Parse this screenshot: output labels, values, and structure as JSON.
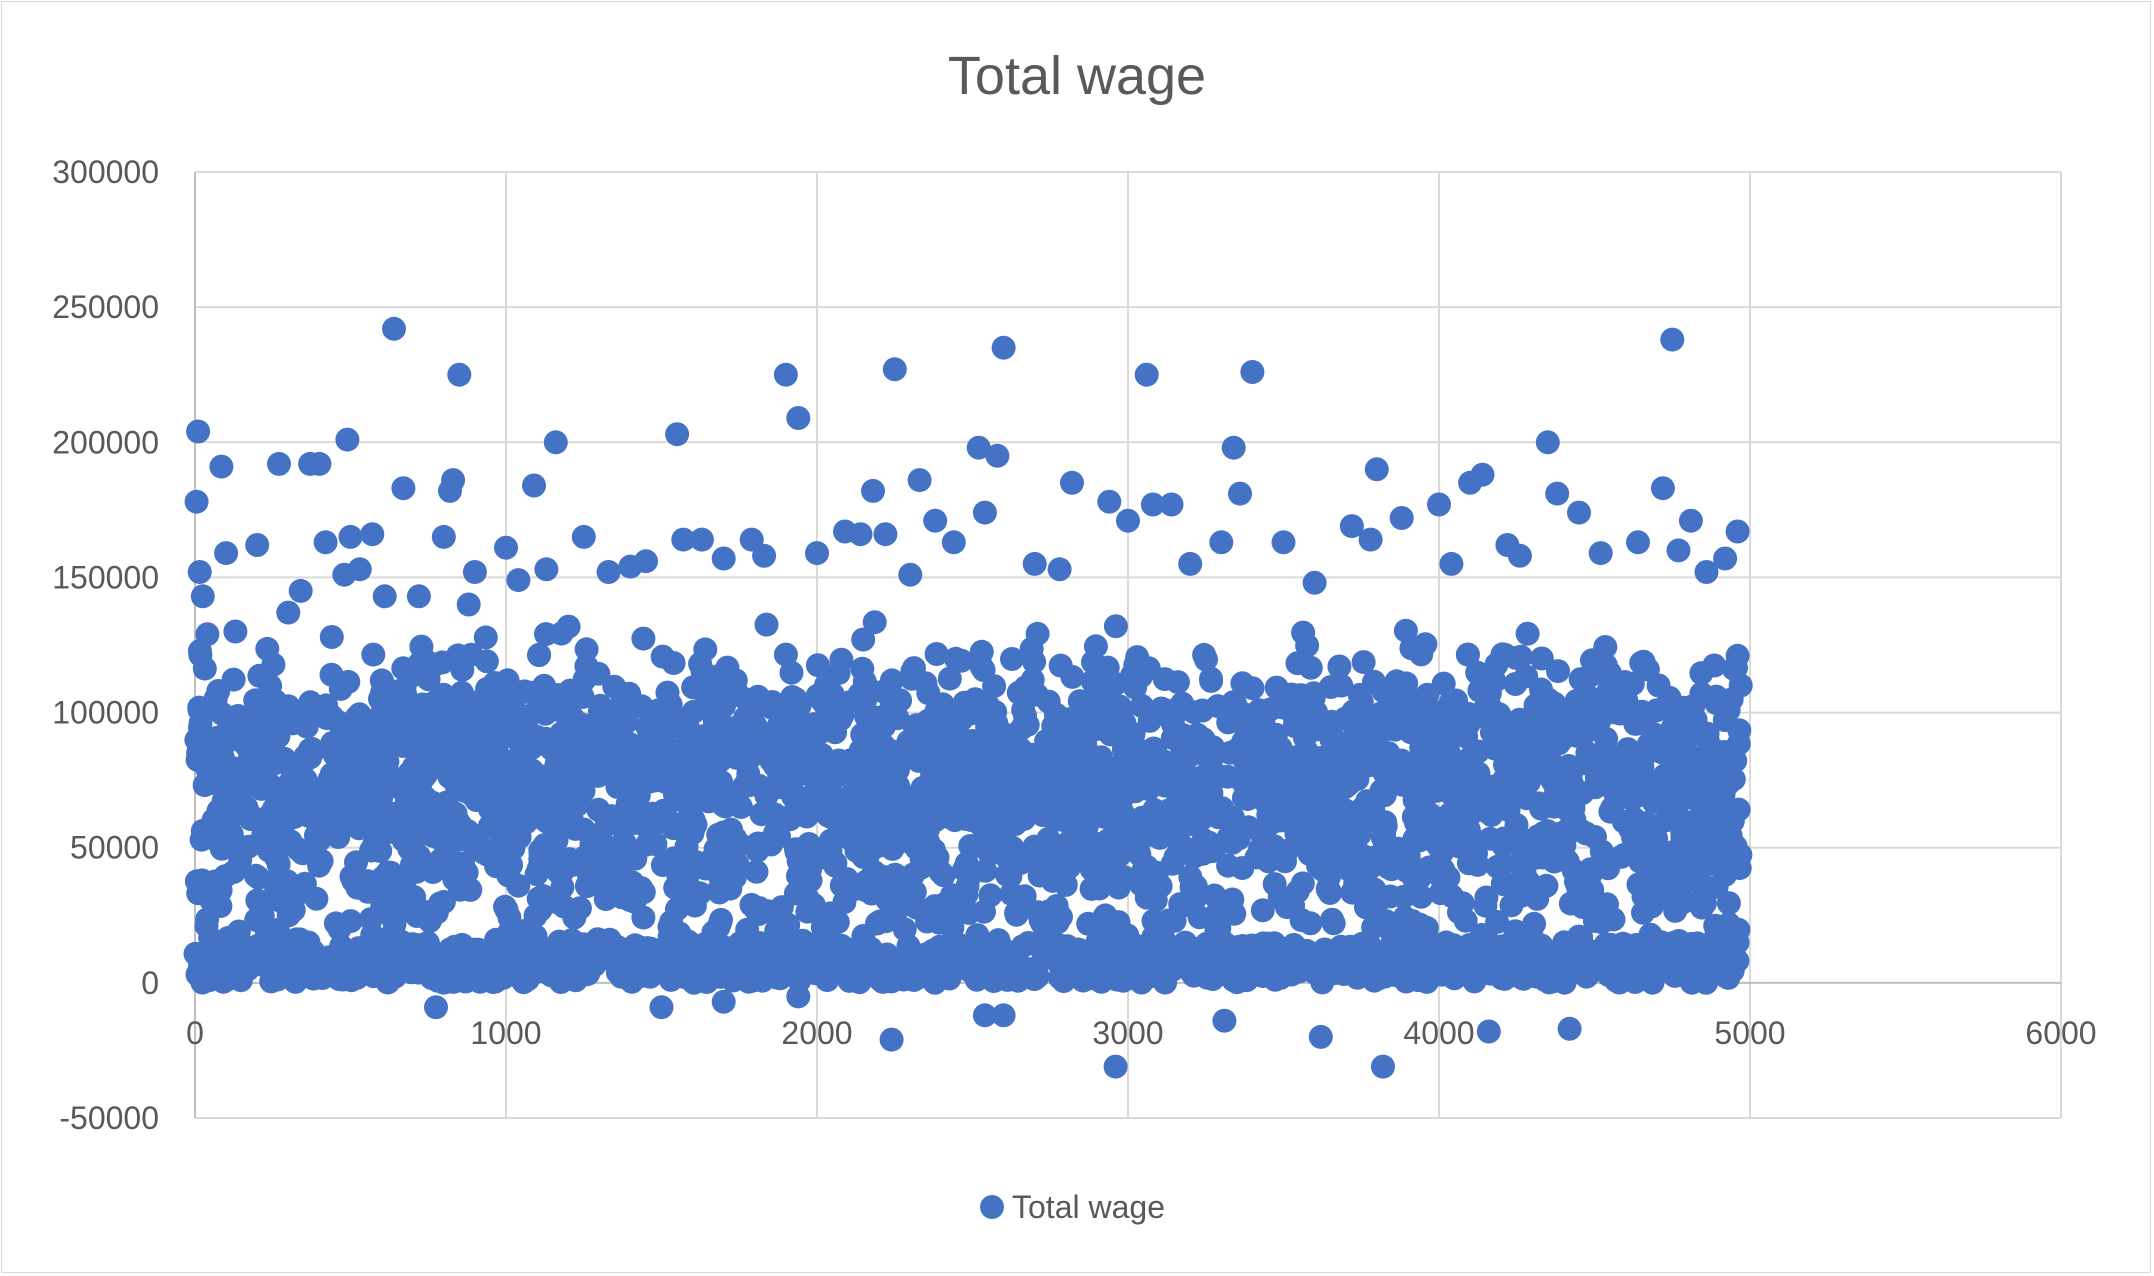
{
  "chart_data": {
    "type": "scatter",
    "title": "Total wage",
    "xlabel": "",
    "ylabel": "",
    "xlim": [
      0,
      6000
    ],
    "ylim": [
      -50000,
      300000
    ],
    "x_ticks": [
      "0",
      "1000",
      "2000",
      "3000",
      "4000",
      "5000",
      "6000"
    ],
    "y_ticks": [
      "300000",
      "250000",
      "200000",
      "150000",
      "100000",
      "50000",
      "0",
      "-50000"
    ],
    "grid": true,
    "legend_position": "bottom",
    "series": [
      {
        "name": "Total wage",
        "color": "#4472C4",
        "point_count_approx": 4970,
        "x_range": [
          1,
          4970
        ],
        "notes_distribution": "dense band mostly between 0 and 130000 across all x",
        "points": [
          [
            10,
            204000
          ],
          [
            5,
            178000
          ],
          [
            15,
            152000
          ],
          [
            25,
            143000
          ],
          [
            40,
            129000
          ],
          [
            85,
            191000
          ],
          [
            100,
            159000
          ],
          [
            130,
            130000
          ],
          [
            200,
            162000
          ],
          [
            270,
            192000
          ],
          [
            300,
            137000
          ],
          [
            340,
            145000
          ],
          [
            370,
            192000
          ],
          [
            400,
            192000
          ],
          [
            420,
            163000
          ],
          [
            480,
            151000
          ],
          [
            490,
            201000
          ],
          [
            500,
            165000
          ],
          [
            530,
            153000
          ],
          [
            570,
            166000
          ],
          [
            610,
            143000
          ],
          [
            640,
            242000
          ],
          [
            670,
            183000
          ],
          [
            720,
            143000
          ],
          [
            800,
            165000
          ],
          [
            820,
            182000
          ],
          [
            830,
            186000
          ],
          [
            850,
            225000
          ],
          [
            880,
            140000
          ],
          [
            900,
            152000
          ],
          [
            1000,
            161000
          ],
          [
            1040,
            149000
          ],
          [
            1090,
            184000
          ],
          [
            1130,
            153000
          ],
          [
            1160,
            200000
          ],
          [
            1250,
            165000
          ],
          [
            1330,
            152000
          ],
          [
            1400,
            154000
          ],
          [
            1450,
            156000
          ],
          [
            1550,
            203000
          ],
          [
            1570,
            164000
          ],
          [
            1630,
            164000
          ],
          [
            1700,
            157000
          ],
          [
            1790,
            164000
          ],
          [
            1830,
            158000
          ],
          [
            1900,
            225000
          ],
          [
            1940,
            209000
          ],
          [
            2000,
            159000
          ],
          [
            2090,
            167000
          ],
          [
            2140,
            166000
          ],
          [
            2180,
            182000
          ],
          [
            2220,
            166000
          ],
          [
            2250,
            227000
          ],
          [
            2300,
            151000
          ],
          [
            2330,
            186000
          ],
          [
            2380,
            171000
          ],
          [
            2440,
            163000
          ],
          [
            2520,
            198000
          ],
          [
            2540,
            174000
          ],
          [
            2580,
            195000
          ],
          [
            2600,
            235000
          ],
          [
            2700,
            155000
          ],
          [
            2780,
            153000
          ],
          [
            2820,
            185000
          ],
          [
            2940,
            178000
          ],
          [
            3000,
            171000
          ],
          [
            3060,
            225000
          ],
          [
            3080,
            177000
          ],
          [
            3140,
            177000
          ],
          [
            3200,
            155000
          ],
          [
            3300,
            163000
          ],
          [
            3340,
            198000
          ],
          [
            3360,
            181000
          ],
          [
            3400,
            226000
          ],
          [
            3500,
            163000
          ],
          [
            3600,
            148000
          ],
          [
            3720,
            169000
          ],
          [
            3780,
            164000
          ],
          [
            3800,
            190000
          ],
          [
            3880,
            172000
          ],
          [
            4000,
            177000
          ],
          [
            4040,
            155000
          ],
          [
            4100,
            185000
          ],
          [
            4140,
            188000
          ],
          [
            4220,
            162000
          ],
          [
            4260,
            158000
          ],
          [
            4350,
            200000
          ],
          [
            4380,
            181000
          ],
          [
            4450,
            174000
          ],
          [
            4520,
            159000
          ],
          [
            4640,
            163000
          ],
          [
            4720,
            183000
          ],
          [
            4750,
            238000
          ],
          [
            4770,
            160000
          ],
          [
            4810,
            171000
          ],
          [
            4860,
            152000
          ],
          [
            4920,
            157000
          ],
          [
            4960,
            167000
          ],
          [
            4960,
            121000
          ],
          [
            4970,
            110000
          ],
          [
            775,
            -9000
          ],
          [
            1500,
            -9000
          ],
          [
            1700,
            -7000
          ],
          [
            1940,
            -5000
          ],
          [
            2240,
            -21000
          ],
          [
            2540,
            -12000
          ],
          [
            2600,
            -12000
          ],
          [
            2960,
            -31000
          ],
          [
            3310,
            -14000
          ],
          [
            3620,
            -20000
          ],
          [
            3820,
            -31000
          ],
          [
            4160,
            -18000
          ],
          [
            4420,
            -17000
          ]
        ]
      }
    ]
  }
}
